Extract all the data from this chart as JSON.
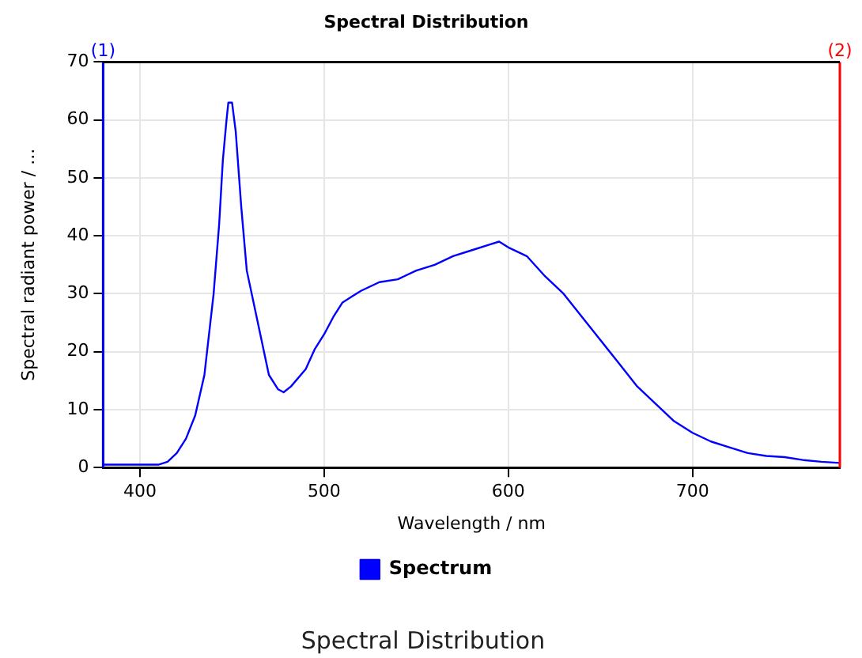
{
  "chart_data": {
    "type": "line",
    "title": "Spectral Distribution",
    "xlabel": "Wavelength / nm",
    "ylabel": "Spectral radiant power / ...",
    "x": [
      380,
      400,
      410,
      415,
      420,
      425,
      430,
      435,
      440,
      443,
      445,
      447,
      448,
      450,
      452,
      455,
      458,
      462,
      466,
      470,
      475,
      478,
      482,
      490,
      495,
      500,
      505,
      510,
      515,
      520,
      530,
      540,
      550,
      560,
      570,
      580,
      590,
      595,
      600,
      610,
      620,
      630,
      640,
      650,
      660,
      670,
      680,
      690,
      700,
      710,
      720,
      730,
      740,
      750,
      760,
      770,
      780
    ],
    "series": [
      {
        "name": "Spectrum",
        "color": "#0000ff",
        "values": [
          0.5,
          0.5,
          0.5,
          1,
          2.5,
          5,
          9,
          16,
          30,
          42,
          53,
          60,
          63,
          63,
          58,
          45,
          34,
          28,
          22,
          16,
          13.5,
          13,
          14,
          17,
          20.5,
          23,
          26,
          28.5,
          29.5,
          30.5,
          32,
          32.5,
          34,
          35,
          36.5,
          37.5,
          38.5,
          39,
          38,
          36.5,
          33,
          30,
          26,
          22,
          18,
          14,
          11,
          8,
          6,
          4.5,
          3.5,
          2.5,
          2,
          1.8,
          1.3,
          1,
          0.8
        ]
      }
    ],
    "xlim": [
      380,
      780
    ],
    "xticks": [
      400,
      500,
      600,
      700
    ],
    "ylim": [
      0,
      70
    ],
    "yticks": [
      0,
      10,
      20,
      30,
      40,
      50,
      60,
      70
    ],
    "grid": true,
    "legend": "bottom",
    "marker": "none",
    "line_style": "solid",
    "ref_lines": [
      {
        "axis": "x",
        "value": 380,
        "color": "#0000ff"
      },
      {
        "axis": "x",
        "value": 780,
        "color": "#ff0000"
      }
    ],
    "annotations": [
      {
        "text": "(1)",
        "x": 380,
        "y": 70
      },
      {
        "text": "(2)",
        "x": 780,
        "y": 70
      },
      "Spectral Distribution"
    ]
  }
}
